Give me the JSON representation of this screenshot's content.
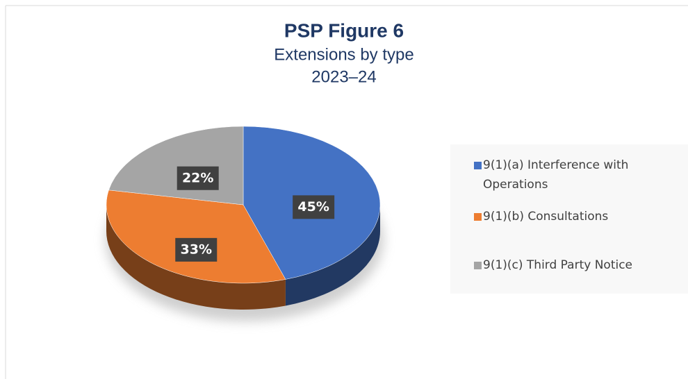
{
  "chart_data": {
    "type": "pie",
    "title": "PSP Figure 6",
    "subtitle": [
      "Extensions by type",
      "2023–24"
    ],
    "categories": [
      "9(1)(a) Interference with Operations",
      "9(1)(b) Consultations",
      "9(1)(c) Third Party Notice"
    ],
    "values": [
      45,
      33,
      22
    ],
    "value_labels": [
      "45%",
      "33%",
      "22%"
    ],
    "colors": [
      "#4472c4",
      "#ed7d31",
      "#a5a5a5"
    ],
    "legend": "right"
  }
}
